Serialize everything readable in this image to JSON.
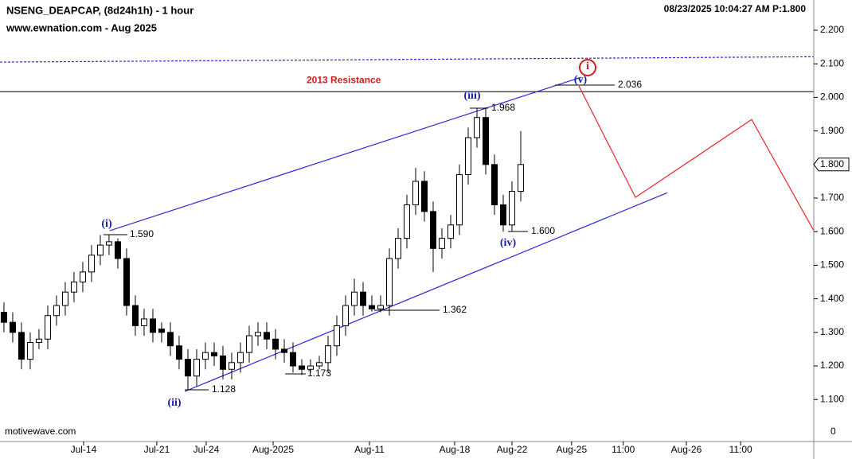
{
  "chart_data": {
    "type": "candlestick",
    "title": "NSENG_DEAPCAP, (8d24h1h) - 1 hour",
    "subtitle": "www.ewnation.com  - Aug 2025",
    "timestamp": "08/23/2025 10:04:27 AM  P:1.800",
    "watermark": "motivewave.com",
    "ylim": [
      0.975,
      2.29
    ],
    "yticks": [
      {
        "value": 1.1,
        "label": "1.100"
      },
      {
        "value": 1.2,
        "label": "1.200"
      },
      {
        "value": 1.3,
        "label": "1.300"
      },
      {
        "value": 1.4,
        "label": "1.400"
      },
      {
        "value": 1.5,
        "label": "1.500"
      },
      {
        "value": 1.6,
        "label": "1.600"
      },
      {
        "value": 1.7,
        "label": "1.700"
      },
      {
        "value": 1.8,
        "label": "1.800"
      },
      {
        "value": 1.9,
        "label": "1.900"
      },
      {
        "value": 2.0,
        "label": "2.000"
      },
      {
        "value": 2.1,
        "label": "2.100"
      },
      {
        "value": 2.2,
        "label": "2.200"
      }
    ],
    "volume_axis_label": 0,
    "current_price": {
      "value": 1.8,
      "label": "1.800"
    },
    "xlim": [
      -0.45,
      92.45
    ],
    "xticks": [
      {
        "value": 9.09,
        "label": "Jul-14"
      },
      {
        "value": 17.45,
        "label": "Jul-21"
      },
      {
        "value": 23.09,
        "label": "Jul-24"
      },
      {
        "value": 30.73,
        "label": "Aug-2025"
      },
      {
        "value": 41.73,
        "label": "Aug-11"
      },
      {
        "value": 51.45,
        "label": "Aug-18"
      },
      {
        "value": 58,
        "label": "Aug-22"
      },
      {
        "value": 64.8,
        "label": "Aug-25"
      },
      {
        "value": 70.7,
        "label": "11:00"
      },
      {
        "value": 77.9,
        "label": "Aug-26"
      },
      {
        "value": 84.1,
        "label": "11:00"
      }
    ],
    "candles": [
      [
        1.36,
        1.39,
        1.3,
        1.33
      ],
      [
        1.33,
        1.36,
        1.27,
        1.3
      ],
      [
        1.3,
        1.33,
        1.19,
        1.22
      ],
      [
        1.22,
        1.3,
        1.19,
        1.27
      ],
      [
        1.27,
        1.31,
        1.25,
        1.28
      ],
      [
        1.28,
        1.38,
        1.25,
        1.35
      ],
      [
        1.35,
        1.41,
        1.32,
        1.38
      ],
      [
        1.38,
        1.45,
        1.35,
        1.42
      ],
      [
        1.42,
        1.48,
        1.39,
        1.45
      ],
      [
        1.45,
        1.51,
        1.42,
        1.48
      ],
      [
        1.48,
        1.56,
        1.45,
        1.53
      ],
      [
        1.53,
        1.59,
        1.5,
        1.56
      ],
      [
        1.56,
        1.59,
        1.53,
        1.57
      ],
      [
        1.57,
        1.58,
        1.49,
        1.52
      ],
      [
        1.52,
        1.55,
        1.35,
        1.38
      ],
      [
        1.38,
        1.41,
        1.29,
        1.32
      ],
      [
        1.32,
        1.37,
        1.29,
        1.34
      ],
      [
        1.34,
        1.37,
        1.27,
        1.3
      ],
      [
        1.31,
        1.33,
        1.27,
        1.3
      ],
      [
        1.3,
        1.33,
        1.23,
        1.26
      ],
      [
        1.26,
        1.29,
        1.19,
        1.22
      ],
      [
        1.22,
        1.25,
        1.128,
        1.17
      ],
      [
        1.17,
        1.25,
        1.14,
        1.22
      ],
      [
        1.22,
        1.27,
        1.19,
        1.24
      ],
      [
        1.24,
        1.27,
        1.2,
        1.23
      ],
      [
        1.23,
        1.26,
        1.16,
        1.19
      ],
      [
        1.19,
        1.24,
        1.16,
        1.21
      ],
      [
        1.21,
        1.27,
        1.18,
        1.24
      ],
      [
        1.24,
        1.32,
        1.21,
        1.29
      ],
      [
        1.29,
        1.33,
        1.26,
        1.3
      ],
      [
        1.3,
        1.33,
        1.25,
        1.28
      ],
      [
        1.28,
        1.31,
        1.22,
        1.25
      ],
      [
        1.25,
        1.28,
        1.21,
        1.24
      ],
      [
        1.24,
        1.27,
        1.18,
        1.2
      ],
      [
        1.2,
        1.22,
        1.173,
        1.19
      ],
      [
        1.19,
        1.22,
        1.18,
        1.2
      ],
      [
        1.2,
        1.23,
        1.19,
        1.21
      ],
      [
        1.21,
        1.29,
        1.18,
        1.26
      ],
      [
        1.26,
        1.35,
        1.23,
        1.32
      ],
      [
        1.32,
        1.41,
        1.29,
        1.38
      ],
      [
        1.38,
        1.46,
        1.35,
        1.42
      ],
      [
        1.42,
        1.45,
        1.35,
        1.38
      ],
      [
        1.38,
        1.41,
        1.362,
        1.37
      ],
      [
        1.37,
        1.41,
        1.36,
        1.38
      ],
      [
        1.38,
        1.55,
        1.35,
        1.52
      ],
      [
        1.52,
        1.61,
        1.49,
        1.58
      ],
      [
        1.58,
        1.71,
        1.55,
        1.68
      ],
      [
        1.68,
        1.79,
        1.65,
        1.75
      ],
      [
        1.75,
        1.78,
        1.63,
        1.66
      ],
      [
        1.66,
        1.69,
        1.48,
        1.55
      ],
      [
        1.55,
        1.61,
        1.52,
        1.58
      ],
      [
        1.58,
        1.65,
        1.55,
        1.62
      ],
      [
        1.62,
        1.8,
        1.59,
        1.77
      ],
      [
        1.77,
        1.91,
        1.74,
        1.88
      ],
      [
        1.88,
        1.968,
        1.85,
        1.94
      ],
      [
        1.94,
        1.97,
        1.77,
        1.8
      ],
      [
        1.8,
        1.83,
        1.65,
        1.68
      ],
      [
        1.68,
        1.71,
        1.6,
        1.62
      ],
      [
        1.62,
        1.75,
        1.6,
        1.72
      ],
      [
        1.72,
        1.9,
        1.69,
        1.8
      ]
    ],
    "channel_upper": {
      "x": [
        12.09,
        65.9
      ],
      "y": [
        1.603,
        2.06
      ],
      "color": "#2a2ad6"
    },
    "channel_lower": {
      "x": [
        20.64,
        75.73
      ],
      "y": [
        1.124,
        1.716
      ],
      "color": "#2a2ad6"
    },
    "projection": {
      "x": [
        65.64,
        72.09,
        85.36,
        92.45
      ],
      "y": [
        2.034,
        1.702,
        1.934,
        1.603
      ],
      "color": "#e8262a"
    },
    "resistance": {
      "value": 2.017,
      "label": "2013 Resistance",
      "color": "#d01c1c"
    },
    "dashed_line": {
      "x": [
        -0.45,
        92.45
      ],
      "y": [
        2.105,
        2.121
      ],
      "color": "#2a2ad6"
    },
    "wave_labels": [
      "(i)",
      "(ii)",
      "(iii)",
      "(iv)",
      "(v)",
      "i"
    ],
    "price_notes": [
      "1.590",
      "1.128",
      "1.173",
      "1.362",
      "1.968",
      "1.600",
      "2.036"
    ]
  }
}
